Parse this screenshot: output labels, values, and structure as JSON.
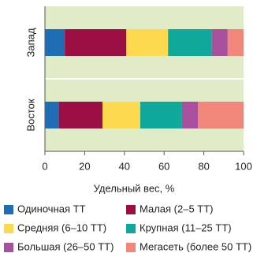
{
  "chart_data": {
    "type": "stacked_barh",
    "categories": [
      "Запад",
      "Восток"
    ],
    "series": [
      {
        "name": "Одиночная ТТ",
        "color": "#1f6db5",
        "values": [
          10,
          7
        ]
      },
      {
        "name": "Малая (2–5 ТТ)",
        "color": "#9b0f44",
        "values": [
          31,
          22
        ]
      },
      {
        "name": "Средняя (6–10 ТТ)",
        "color": "#fdd94f",
        "values": [
          21,
          19
        ]
      },
      {
        "name": "Крупная (11–25 ТТ)",
        "color": "#0fa89a",
        "values": [
          22,
          21
        ]
      },
      {
        "name": "Большая (26–50 ТТ)",
        "color": "#a8509e",
        "values": [
          8,
          8
        ]
      },
      {
        "name": "Мегасеть (более 50 ТТ)",
        "color": "#f0877a",
        "values": [
          8,
          23
        ]
      }
    ],
    "x_label": "Удельный вес, %",
    "xlim": [
      0,
      100
    ],
    "xticks": [
      0,
      20,
      40,
      60,
      80,
      100
    ],
    "panel_color": "#e0ebc8"
  }
}
